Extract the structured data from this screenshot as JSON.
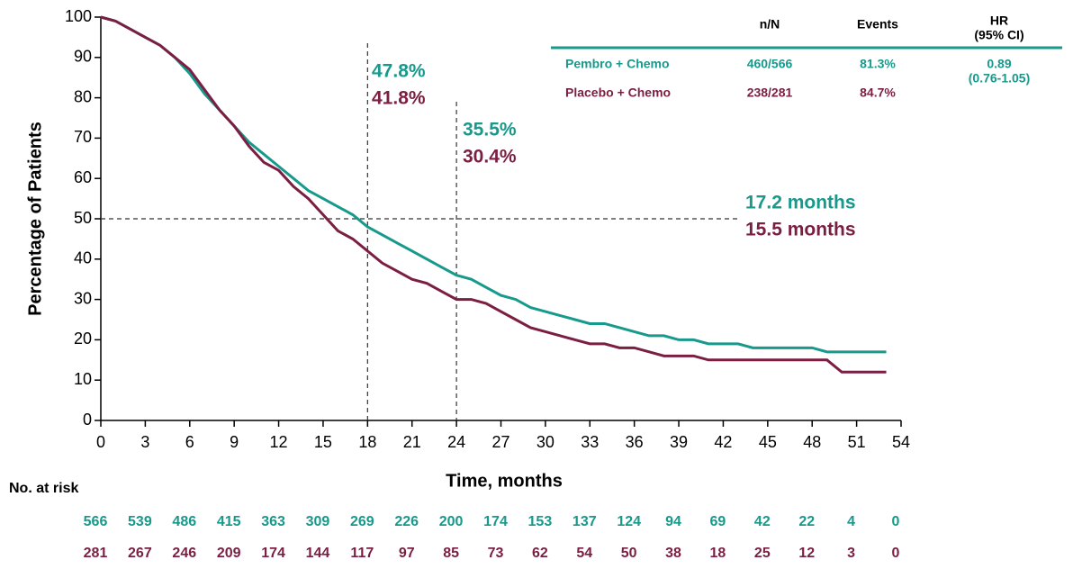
{
  "chart_data": {
    "type": "km",
    "ylabel": "Percentage of Patients",
    "xlabel": "Time, months",
    "xlim": [
      0,
      54
    ],
    "ylim": [
      0,
      100
    ],
    "xticks": [
      0,
      3,
      6,
      9,
      12,
      15,
      18,
      21,
      24,
      27,
      30,
      33,
      36,
      39,
      42,
      45,
      48,
      51,
      54
    ],
    "yticks": [
      0,
      10,
      20,
      30,
      40,
      50,
      60,
      70,
      80,
      90,
      100
    ],
    "vlines": [
      18,
      24
    ],
    "hline": 50,
    "x": [
      0,
      1,
      2,
      3,
      4,
      5,
      6,
      7,
      8,
      9,
      10,
      11,
      12,
      13,
      14,
      15,
      16,
      17,
      18,
      19,
      20,
      21,
      22,
      23,
      24,
      25,
      26,
      27,
      28,
      29,
      30,
      31,
      32,
      33,
      34,
      35,
      36,
      37,
      38,
      39,
      40,
      41,
      42,
      43,
      44,
      45,
      46,
      47,
      48,
      49,
      50,
      51,
      52,
      53
    ],
    "series": [
      {
        "name": "Pembro + Chemo",
        "color": "#17998b",
        "values": [
          100,
          99,
          97,
          95,
          93,
          90,
          86,
          81,
          77,
          73,
          69,
          66,
          63,
          60,
          57,
          55,
          53,
          51,
          48,
          46,
          44,
          42,
          40,
          38,
          36,
          35,
          33,
          31,
          30,
          28,
          27,
          26,
          25,
          24,
          24,
          23,
          22,
          21,
          21,
          20,
          20,
          19,
          19,
          19,
          18,
          18,
          18,
          18,
          18,
          17,
          17,
          17,
          17,
          17
        ],
        "nN": "460/566",
        "events": "81.3%",
        "at_risk": [
          566,
          539,
          486,
          415,
          363,
          309,
          269,
          226,
          200,
          174,
          153,
          137,
          124,
          94,
          69,
          42,
          22,
          4,
          0
        ]
      },
      {
        "name": "Placebo + Chemo",
        "color": "#7b1f42",
        "values": [
          100,
          99,
          97,
          95,
          93,
          90,
          87,
          82,
          77,
          73,
          68,
          64,
          62,
          58,
          55,
          51,
          47,
          45,
          42,
          39,
          37,
          35,
          34,
          32,
          30,
          30,
          29,
          27,
          25,
          23,
          22,
          21,
          20,
          19,
          19,
          18,
          18,
          17,
          16,
          16,
          16,
          15,
          15,
          15,
          15,
          15,
          15,
          15,
          15,
          15,
          12,
          12,
          12,
          12
        ],
        "nN": "238/281",
        "events": "84.7%",
        "at_risk": [
          281,
          267,
          246,
          209,
          174,
          144,
          117,
          97,
          85,
          73,
          62,
          54,
          50,
          38,
          18,
          25,
          12,
          3,
          0
        ]
      }
    ],
    "annotations": [
      "47.8%",
      "41.8%",
      "35.5%",
      "30.4%",
      "17.2 months",
      "15.5 months"
    ],
    "table_headers": [
      "n/N",
      "Events",
      "HR",
      "(95% CI)"
    ],
    "hr": [
      "0.89",
      "(0.76-1.05)"
    ],
    "risk_title": "No. at risk"
  }
}
